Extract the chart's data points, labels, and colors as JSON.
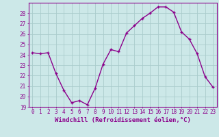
{
  "x": [
    0,
    1,
    2,
    3,
    4,
    5,
    6,
    7,
    8,
    9,
    10,
    11,
    12,
    13,
    14,
    15,
    16,
    17,
    18,
    19,
    20,
    21,
    22,
    23
  ],
  "y": [
    24.2,
    24.1,
    24.2,
    22.2,
    20.6,
    19.4,
    19.6,
    19.2,
    20.8,
    23.1,
    24.5,
    24.3,
    26.1,
    26.8,
    27.5,
    28.0,
    28.6,
    28.6,
    28.1,
    26.2,
    25.5,
    24.1,
    21.9,
    20.9
  ],
  "line_color": "#8B008B",
  "marker": "+",
  "markersize": 3,
  "linewidth": 1.0,
  "background_color": "#cce8e8",
  "grid_color": "#aacccc",
  "xlabel": "Windchill (Refroidissement éolien,°C)",
  "xlabel_color": "#8B008B",
  "ylim": [
    19,
    29
  ],
  "xlim": [
    -0.5,
    23.5
  ],
  "yticks": [
    19,
    20,
    21,
    22,
    23,
    24,
    25,
    26,
    27,
    28
  ],
  "xticks": [
    0,
    1,
    2,
    3,
    4,
    5,
    6,
    7,
    8,
    9,
    10,
    11,
    12,
    13,
    14,
    15,
    16,
    17,
    18,
    19,
    20,
    21,
    22,
    23
  ],
  "tick_color": "#8B008B",
  "tick_fontsize": 5.5,
  "xlabel_fontsize": 6.5,
  "spine_color": "#8B008B"
}
